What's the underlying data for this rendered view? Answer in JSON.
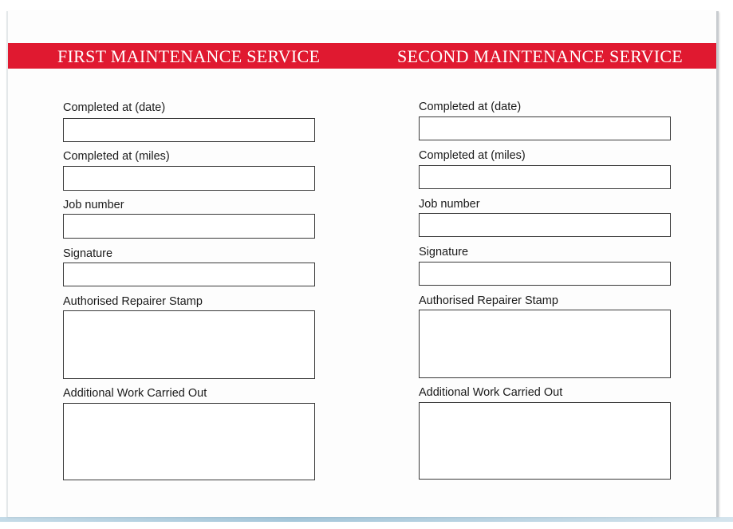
{
  "sections": [
    {
      "title": "FIRST MAINTENANCE SERVICE",
      "fields": [
        "Completed at (date)",
        "Completed at (miles)",
        "Job number",
        "Signature",
        "Authorised Repairer Stamp",
        "Additional Work Carried Out"
      ]
    },
    {
      "title": "SECOND MAINTENANCE SERVICE",
      "fields": [
        "Completed at (date)",
        "Completed at (miles)",
        "Job number",
        "Signature",
        "Authorised Repairer Stamp",
        "Additional Work Carried Out"
      ]
    }
  ],
  "colors": {
    "band": "#e01930",
    "text": "#1a1a1a"
  }
}
